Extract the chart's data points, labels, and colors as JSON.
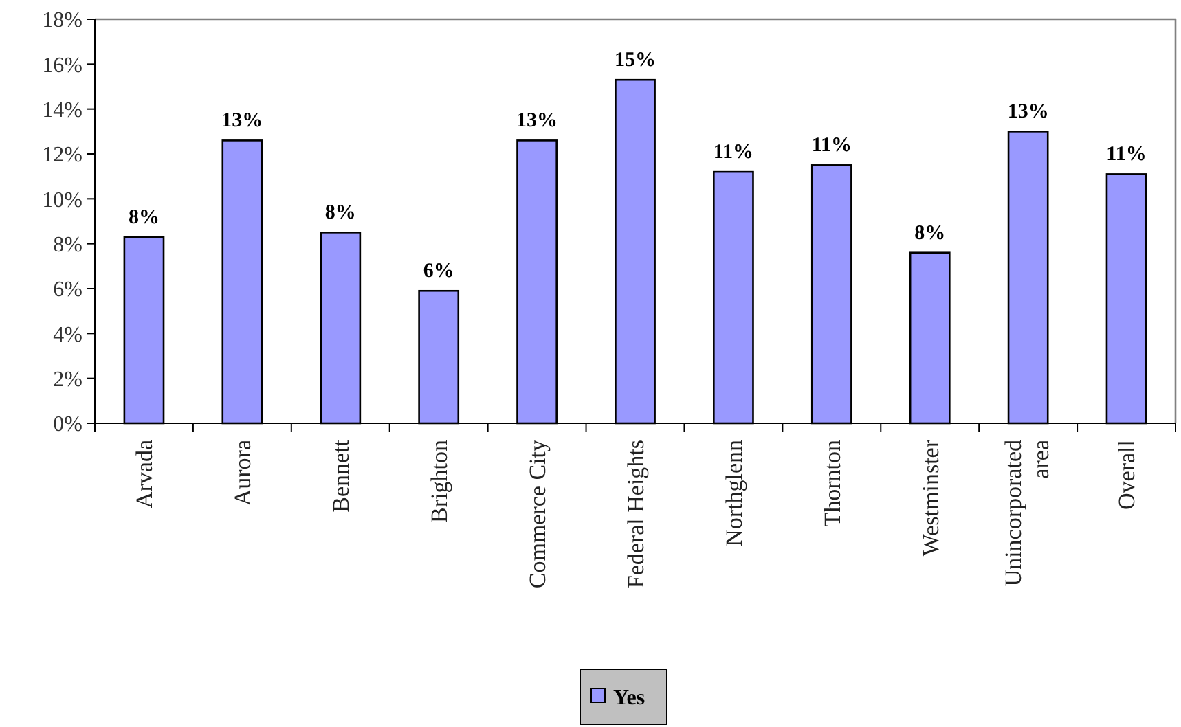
{
  "chart_data": {
    "type": "bar",
    "categories": [
      "Arvada",
      "Aurora",
      "Bennett",
      "Brighton",
      "Commerce City",
      "Federal Heights",
      "Northglenn",
      "Thornton",
      "Westminster",
      "Unincorporated area",
      "Overall"
    ],
    "series": [
      {
        "name": "Yes",
        "color": "#9999ff",
        "values": [
          8.3,
          12.6,
          8.5,
          5.9,
          12.6,
          15.3,
          11.2,
          11.5,
          7.6,
          13.0,
          11.1
        ],
        "value_labels": [
          "8%",
          "13%",
          "8%",
          "6%",
          "13%",
          "15%",
          "11%",
          "11%",
          "8%",
          "13%",
          "11%"
        ]
      }
    ],
    "ylim": [
      0,
      18
    ],
    "yticks": [
      {
        "value": 0,
        "label": "0%"
      },
      {
        "value": 2,
        "label": "2%"
      },
      {
        "value": 4,
        "label": "4%"
      },
      {
        "value": 6,
        "label": "6%"
      },
      {
        "value": 8,
        "label": "8%"
      },
      {
        "value": 10,
        "label": "10%"
      },
      {
        "value": 12,
        "label": "12%"
      },
      {
        "value": 14,
        "label": "14%"
      },
      {
        "value": 16,
        "label": "16%"
      },
      {
        "value": 18,
        "label": "18%"
      }
    ],
    "grid": false,
    "legend": "bottom"
  }
}
